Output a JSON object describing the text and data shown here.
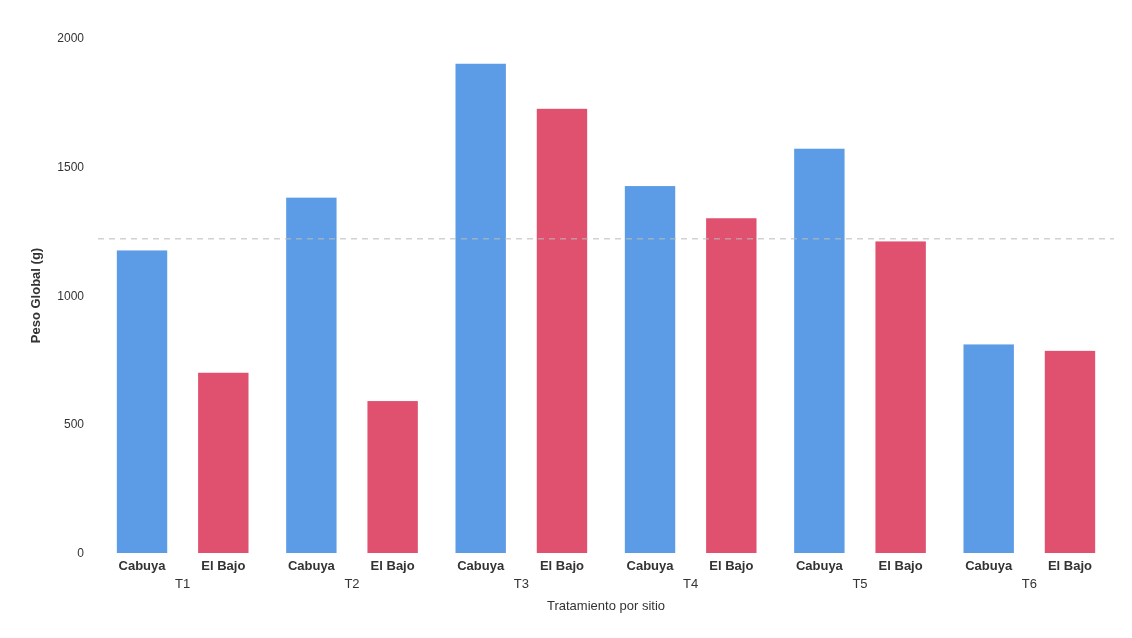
{
  "chart_data": {
    "type": "bar",
    "xlabel": "Tratamiento por sitio",
    "ylabel": "Peso Global (g)",
    "categories": [
      "T1",
      "T2",
      "T3",
      "T4",
      "T5",
      "T6"
    ],
    "series": [
      {
        "name": "Cabuya",
        "color": "#5c9ce6",
        "values": [
          1175,
          1380,
          1900,
          1425,
          1570,
          810
        ]
      },
      {
        "name": "El Bajo",
        "color": "#e0506f",
        "values": [
          700,
          590,
          1725,
          1300,
          1210,
          785
        ]
      }
    ],
    "ylim": [
      0,
      2000
    ],
    "yticks": [
      0,
      500,
      1000,
      1500,
      2000
    ],
    "grid": false,
    "ref_lines": [
      {
        "axis": "y",
        "value": 1220,
        "color": "#bbbbbb",
        "line_style": "dashed"
      }
    ]
  }
}
